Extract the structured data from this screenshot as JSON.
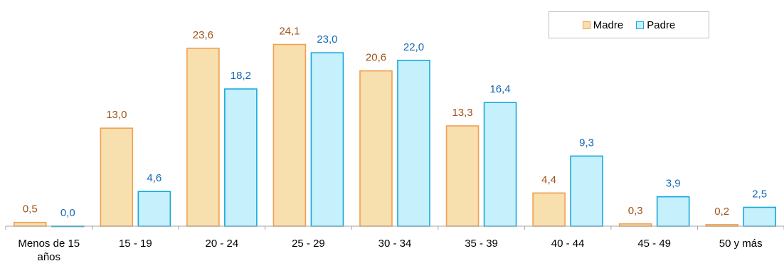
{
  "chart_data": {
    "type": "bar",
    "categories": [
      [
        "Menos de 15",
        "años"
      ],
      [
        "15 - 19"
      ],
      [
        "20 - 24"
      ],
      [
        "25 - 29"
      ],
      [
        "30 - 34"
      ],
      [
        "35 - 39"
      ],
      [
        "40 - 44"
      ],
      [
        "45 - 49"
      ],
      [
        "50 y más"
      ]
    ],
    "series": [
      {
        "name": "Madre",
        "values": [
          0.5,
          13.0,
          23.6,
          24.1,
          20.6,
          13.3,
          4.4,
          0.3,
          0.2
        ],
        "labels": [
          "0,5",
          "13,0",
          "23,6",
          "24,1",
          "20,6",
          "13,3",
          "4,4",
          "0,3",
          "0,2"
        ],
        "fill": "#f7dfae",
        "stroke": "#f0a050",
        "label_color": "#a0521a"
      },
      {
        "name": "Padre",
        "values": [
          0.0,
          4.6,
          18.2,
          23.0,
          22.0,
          16.4,
          9.3,
          3.9,
          2.5
        ],
        "labels": [
          "0,0",
          "4,6",
          "18,2",
          "23,0",
          "22,0",
          "16,4",
          "9,3",
          "3,9",
          "2,5"
        ],
        "fill": "#c6f0fc",
        "stroke": "#14a9dc",
        "label_color": "#1469b4"
      }
    ],
    "ylim": [
      0,
      25
    ],
    "grid": false,
    "legend_position": "top-right"
  }
}
